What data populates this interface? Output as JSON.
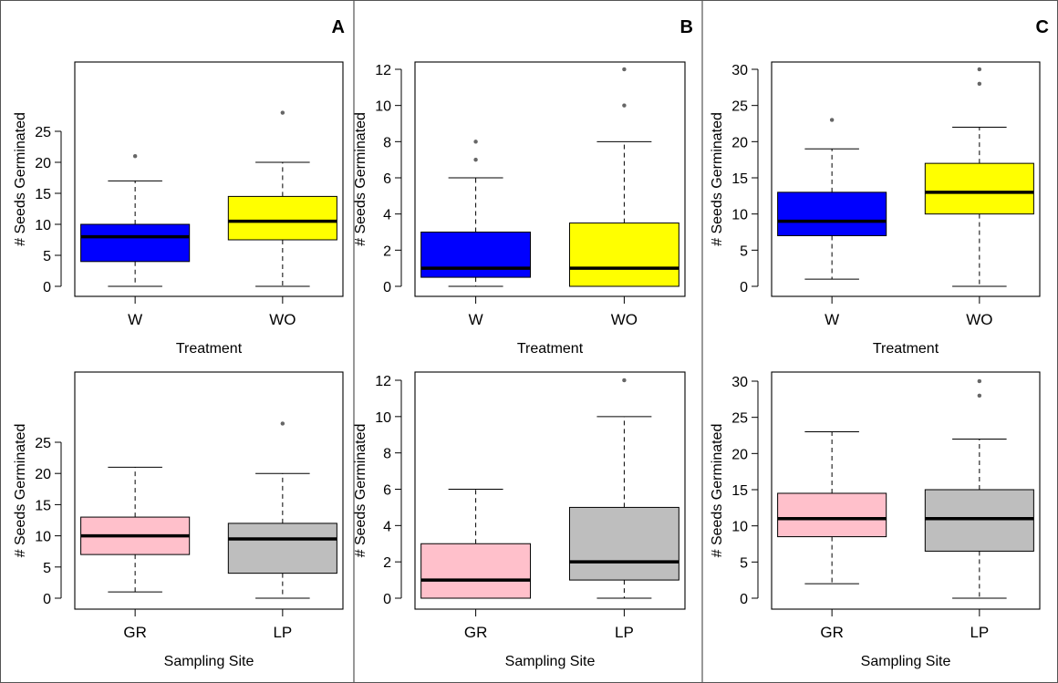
{
  "panels": [
    {
      "letter": "A"
    },
    {
      "letter": "B"
    },
    {
      "letter": "C"
    }
  ],
  "chart_data": [
    {
      "type": "boxplot",
      "panel": "A",
      "xlabel": "Treatment",
      "ylabel": "# Seeds Germinated",
      "ylim": [
        0,
        28
      ],
      "yticks": [
        0,
        5,
        10,
        15,
        20,
        25
      ],
      "categories": [
        "W",
        "WO"
      ],
      "boxes": [
        {
          "category": "W",
          "fill": "#0000ff",
          "min": 0,
          "q1": 4,
          "median": 8,
          "q3": 10,
          "max": 17,
          "outliers": [
            21
          ]
        },
        {
          "category": "WO",
          "fill": "#ffff00",
          "min": 0,
          "q1": 7.5,
          "median": 10.5,
          "q3": 14.5,
          "max": 20,
          "outliers": [
            28
          ]
        }
      ]
    },
    {
      "type": "boxplot",
      "panel": "B",
      "xlabel": "Treatment",
      "ylabel": "# Seeds Germinated",
      "ylim": [
        0,
        12
      ],
      "yticks": [
        0,
        2,
        4,
        6,
        8,
        10,
        12
      ],
      "categories": [
        "W",
        "WO"
      ],
      "boxes": [
        {
          "category": "W",
          "fill": "#0000ff",
          "min": 0,
          "q1": 0.5,
          "median": 1,
          "q3": 3,
          "max": 6,
          "outliers": [
            7,
            8
          ]
        },
        {
          "category": "WO",
          "fill": "#ffff00",
          "min": 0,
          "q1": 0,
          "median": 1,
          "q3": 3.5,
          "max": 8,
          "outliers": [
            10,
            12
          ]
        }
      ]
    },
    {
      "type": "boxplot",
      "panel": "C",
      "xlabel": "Treatment",
      "ylabel": "# Seeds Germinated",
      "ylim": [
        0,
        30
      ],
      "yticks": [
        0,
        5,
        10,
        15,
        20,
        25,
        30
      ],
      "categories": [
        "W",
        "WO"
      ],
      "boxes": [
        {
          "category": "W",
          "fill": "#0000ff",
          "min": 1,
          "q1": 7,
          "median": 9,
          "q3": 13,
          "max": 19,
          "outliers": [
            23
          ]
        },
        {
          "category": "WO",
          "fill": "#ffff00",
          "min": 0,
          "q1": 10,
          "median": 13,
          "q3": 17,
          "max": 22,
          "outliers": [
            28,
            30
          ]
        }
      ]
    },
    {
      "type": "boxplot",
      "panel": "A",
      "xlabel": "Sampling Site",
      "ylabel": "# Seeds Germinated",
      "ylim": [
        0,
        28
      ],
      "yticks": [
        0,
        5,
        10,
        15,
        20,
        25
      ],
      "categories": [
        "GR",
        "LP"
      ],
      "boxes": [
        {
          "category": "GR",
          "fill": "#ffc0cb",
          "min": 1,
          "q1": 7,
          "median": 10,
          "q3": 13,
          "max": 21,
          "outliers": []
        },
        {
          "category": "LP",
          "fill": "#bebebe",
          "min": 0,
          "q1": 4,
          "median": 9.5,
          "q3": 12,
          "max": 20,
          "outliers": [
            28
          ]
        }
      ]
    },
    {
      "type": "boxplot",
      "panel": "B",
      "xlabel": "Sampling Site",
      "ylabel": "# Seeds Germinated",
      "ylim": [
        0,
        12
      ],
      "yticks": [
        0,
        2,
        4,
        6,
        8,
        10,
        12
      ],
      "categories": [
        "GR",
        "LP"
      ],
      "boxes": [
        {
          "category": "GR",
          "fill": "#ffc0cb",
          "min": 0,
          "q1": 0,
          "median": 1,
          "q3": 3,
          "max": 6,
          "outliers": []
        },
        {
          "category": "LP",
          "fill": "#bebebe",
          "min": 0,
          "q1": 1,
          "median": 2,
          "q3": 5,
          "max": 10,
          "outliers": [
            12
          ]
        }
      ]
    },
    {
      "type": "boxplot",
      "panel": "C",
      "xlabel": "Sampling Site",
      "ylabel": "# Seeds Germinated",
      "ylim": [
        0,
        30
      ],
      "yticks": [
        0,
        5,
        10,
        15,
        20,
        25,
        30
      ],
      "categories": [
        "GR",
        "LP"
      ],
      "boxes": [
        {
          "category": "GR",
          "fill": "#ffc0cb",
          "min": 2,
          "q1": 8.5,
          "median": 11,
          "q3": 14.5,
          "max": 23,
          "outliers": []
        },
        {
          "category": "LP",
          "fill": "#bebebe",
          "min": 0,
          "q1": 6.5,
          "median": 11,
          "q3": 15,
          "max": 22,
          "outliers": [
            28,
            30
          ]
        }
      ]
    }
  ]
}
